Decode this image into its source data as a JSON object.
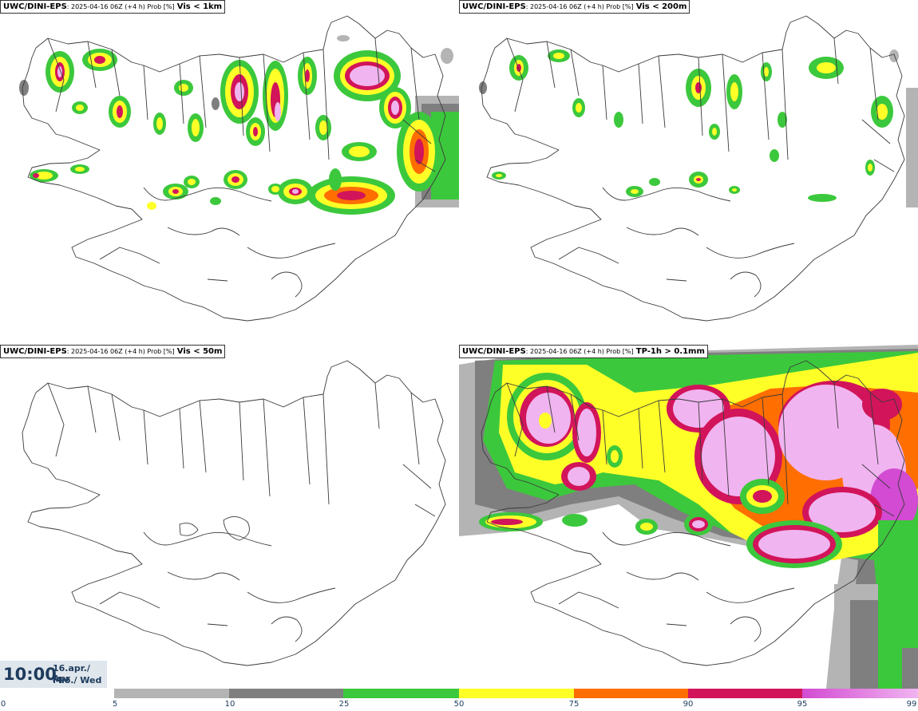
{
  "panels": [
    {
      "source": "UWC/DINI-EPS",
      "meta": ": 2025-04-16 06Z (+4 h) Prob [%]",
      "variable": "Vis < 1km"
    },
    {
      "source": "UWC/DINI-EPS",
      "meta": ": 2025-04-16 06Z (+4 h) Prob [%]",
      "variable": "Vis < 200m"
    },
    {
      "source": "UWC/DINI-EPS",
      "meta": ": 2025-04-16 06Z (+4 h) Prob [%]",
      "variable": "Vis < 50m"
    },
    {
      "source": "UWC/DINI-EPS",
      "meta": ": 2025-04-16 06Z (+4 h) Prob [%]",
      "variable": "TP-1h > 0.1mm"
    }
  ],
  "timestamp": {
    "time": "10:00",
    "date": "16.apr./ Apr",
    "day": "Mið./ Wed"
  },
  "legend": {
    "ticks": [
      "0",
      "5",
      "10",
      "25",
      "50",
      "75",
      "90",
      "95",
      "99"
    ],
    "colors": [
      "#ffffff",
      "#b4b4b4",
      "#7f7f7f",
      "#3cc83c",
      "#ffff28",
      "#ff6e00",
      "#d2145a",
      "#d24bd2",
      "#f0b4f0"
    ]
  }
}
